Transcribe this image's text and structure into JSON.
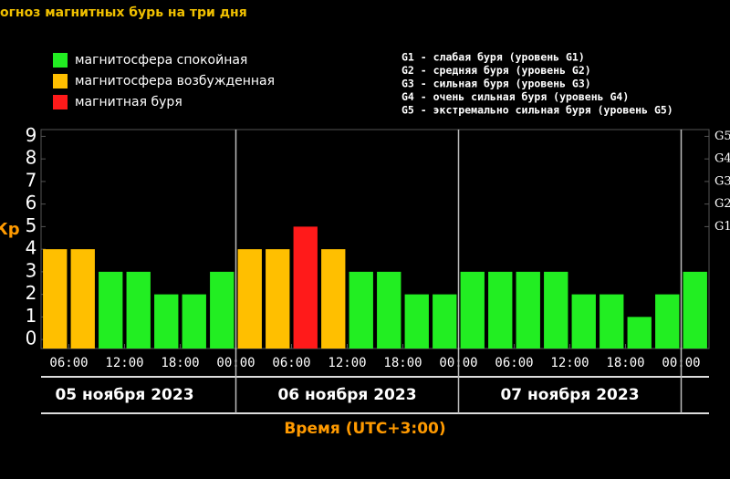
{
  "chart_data": {
    "type": "bar",
    "title": "огноз магнитных бурь на три дня",
    "y_label": "Кр",
    "x_label": "Время (UTC+3:00)",
    "legend": [
      {
        "name": "магнитосфера спокойная",
        "color": "#22ee22"
      },
      {
        "name": "магнитосфера возбужденная",
        "color": "#ffbf00"
      },
      {
        "name": "магнитная буря",
        "color": "#ff1a1a"
      }
    ],
    "g_legend": [
      "G1 - слабая буря (уровень G1)",
      "G2 - средняя буря (уровень G2)",
      "G3 - сильная буря (уровень G3)",
      "G4 - очень сильная буря (уровень G4)",
      "G5 - экстремально сильная буря (уровень G5)"
    ],
    "x": [
      4.5,
      7.5,
      10.5,
      13.5,
      16.5,
      19.5,
      22.5,
      25.5,
      28.5,
      31.5,
      34.5,
      37.5,
      40.5,
      43.5,
      46.5,
      49.5,
      52.5,
      55.5,
      58.5,
      61.5,
      64.5,
      67.5,
      70.5,
      73.5
    ],
    "values": [
      4,
      4,
      3,
      3,
      2,
      2,
      3,
      4,
      4,
      5,
      4,
      3,
      3,
      2,
      2,
      3,
      3,
      3,
      3,
      2,
      2,
      1,
      2,
      3
    ],
    "colors": [
      "#ffbf00",
      "#ffbf00",
      "#22ee22",
      "#22ee22",
      "#22ee22",
      "#22ee22",
      "#22ee22",
      "#ffbf00",
      "#ffbf00",
      "#ff1a1a",
      "#ffbf00",
      "#22ee22",
      "#22ee22",
      "#22ee22",
      "#22ee22",
      "#22ee22",
      "#22ee22",
      "#22ee22",
      "#22ee22",
      "#22ee22",
      "#22ee22",
      "#22ee22",
      "#22ee22",
      "#22ee22"
    ],
    "xlim": [
      3,
      75
    ],
    "xticks": [
      {
        "value": 6,
        "label": "06:00"
      },
      {
        "value": 12,
        "label": "12:00"
      },
      {
        "value": 18,
        "label": "18:00"
      },
      {
        "value": 24,
        "label": "00:00"
      },
      {
        "value": 30,
        "label": "06:00"
      },
      {
        "value": 36,
        "label": "12:00"
      },
      {
        "value": 42,
        "label": "18:00"
      },
      {
        "value": 48,
        "label": "00:00"
      },
      {
        "value": 54,
        "label": "06:00"
      },
      {
        "value": 60,
        "label": "12:00"
      },
      {
        "value": 66,
        "label": "18:00"
      },
      {
        "value": 72,
        "label": "00:00"
      }
    ],
    "ylim": [
      -0.4,
      9.3
    ],
    "yticks": [
      0,
      1,
      2,
      3,
      4,
      5,
      6,
      7,
      8,
      9
    ],
    "y2lim": [
      -0.4,
      9.3
    ],
    "y2ticks": [
      {
        "value": 5,
        "label": "G1"
      },
      {
        "value": 6,
        "label": "G2"
      },
      {
        "value": 7,
        "label": "G3"
      },
      {
        "value": 8,
        "label": "G4"
      },
      {
        "value": 9,
        "label": "G5"
      }
    ],
    "days": [
      "05 ноября 2023",
      "06 ноября 2023",
      "07 ноября 2023"
    ]
  }
}
